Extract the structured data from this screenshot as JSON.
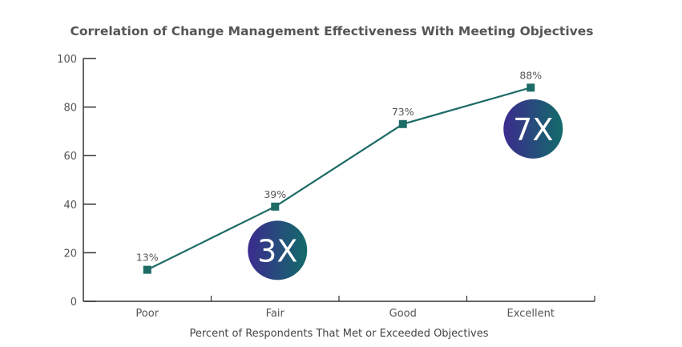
{
  "chart_data": {
    "type": "line",
    "title": "Correlation of Change Management Effectiveness With Meeting Objectives",
    "xlabel": "Percent of Respondents That Met or Exceeded Objectives",
    "ylabel": "",
    "categories": [
      "Poor",
      "Fair",
      "Good",
      "Excellent"
    ],
    "values": [
      13,
      39,
      73,
      88
    ],
    "data_labels": [
      "13%",
      "39%",
      "73%",
      "88%"
    ],
    "ylim": [
      0,
      100
    ],
    "yticks": [
      0,
      20,
      40,
      60,
      80,
      100
    ],
    "grid": false,
    "annotations": [
      {
        "text": "3X",
        "category": "Fair",
        "y": 21
      },
      {
        "text": "7X",
        "category": "Excellent",
        "y": 71
      }
    ],
    "colors": {
      "line": "#1d6b66",
      "axis": "#333333",
      "text": "#555555",
      "badge_gradient": [
        "#3b2b8e",
        "#136b6a"
      ]
    }
  }
}
